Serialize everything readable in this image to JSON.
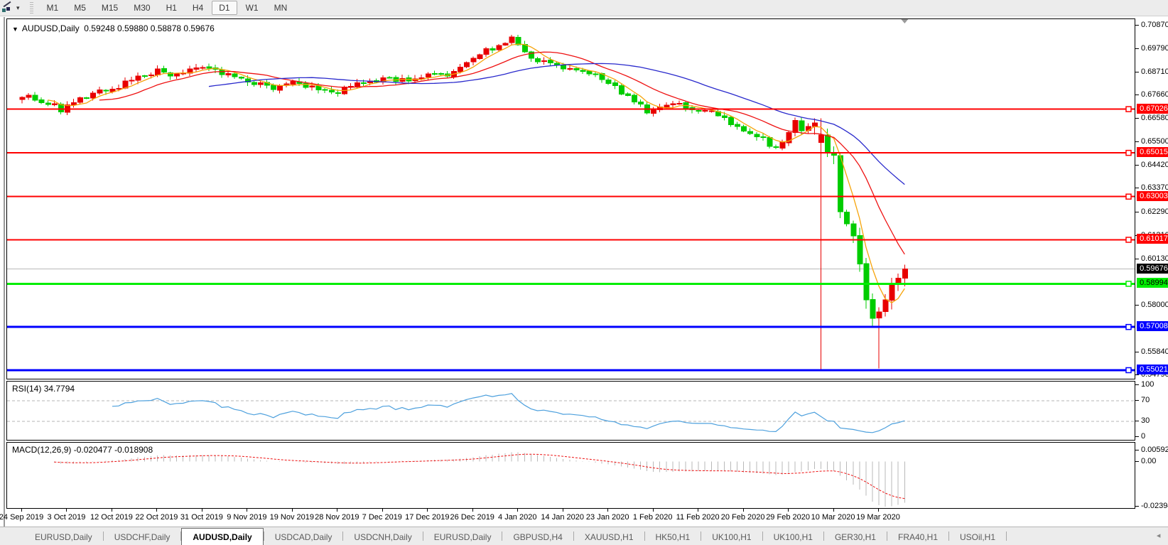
{
  "toolbar": {
    "timeframes": [
      "M1",
      "M5",
      "M15",
      "M30",
      "H1",
      "H4",
      "D1",
      "W1",
      "MN"
    ],
    "active_timeframe": "D1",
    "pointer_tool_icon": "chart-cursor-tool",
    "dropdown_caret": "▾"
  },
  "chart": {
    "title_triangle": "▼",
    "symbol_title": "AUDUSD,Daily",
    "ohlc_text": "0.59248 0.59880 0.58878 0.59676"
  },
  "rsi_panel": {
    "label": "RSI(14)",
    "value": "34.7794",
    "ticks": [
      "100",
      "70",
      "30",
      "0"
    ]
  },
  "macd_panel": {
    "label": "MACD(12,26,9)",
    "values": "-0.020477 -0.018908",
    "ticks": [
      "0.005923",
      "0.00",
      "-0.023944"
    ]
  },
  "chart_data": {
    "type": "candlestick",
    "symbol": "AUDUSD",
    "timeframe": "Daily",
    "current_bar": {
      "open": 0.59248,
      "high": 0.5988,
      "low": 0.58878,
      "close": 0.59676
    },
    "current_price_label": "0.59676",
    "price_range": {
      "top": 0.71163,
      "bottom": 0.54628
    },
    "price_axis_ticks": [
      "0.70870",
      "0.69790",
      "0.68710",
      "0.67660",
      "0.66580",
      "0.65500",
      "0.64420",
      "0.63370",
      "0.62290",
      "0.61210",
      "0.60130",
      "0.58000",
      "0.55840",
      "0.54790"
    ],
    "horizontal_lines": [
      {
        "price": 0.67026,
        "label": "0.67026",
        "color": "#ff0000",
        "text_color": "#ffffff",
        "width": 2
      },
      {
        "price": 0.65015,
        "label": "0.65015",
        "color": "#ff0000",
        "text_color": "#ffffff",
        "width": 2
      },
      {
        "price": 0.63003,
        "label": "0.63003",
        "color": "#ff0000",
        "text_color": "#ffffff",
        "width": 2
      },
      {
        "price": 0.61017,
        "label": "0.61017",
        "color": "#ff0000",
        "text_color": "#ffffff",
        "width": 2
      },
      {
        "price": 0.58994,
        "label": "0.58994",
        "color": "#00ee00",
        "text_color": "#000000",
        "width": 3
      },
      {
        "price": 0.57008,
        "label": "0.57008",
        "color": "#0000ff",
        "text_color": "#ffffff",
        "width": 3
      },
      {
        "price": 0.55021,
        "label": "0.55021",
        "color": "#0000ff",
        "text_color": "#ffffff",
        "width": 3
      }
    ],
    "x_axis_dates": [
      "24 Sep 2019",
      "3 Oct 2019",
      "12 Oct 2019",
      "22 Oct 2019",
      "31 Oct 2019",
      "9 Nov 2019",
      "19 Nov 2019",
      "28 Nov 2019",
      "7 Dec 2019",
      "17 Dec 2019",
      "26 Dec 2019",
      "4 Jan 2020",
      "14 Jan 2020",
      "23 Jan 2020",
      "1 Feb 2020",
      "11 Feb 2020",
      "20 Feb 2020",
      "29 Feb 2020",
      "10 Mar 2020",
      "19 Mar 2020"
    ],
    "bars_per_date_tick": 7,
    "num_bars": 138,
    "bull_color": "#e80000",
    "bear_color": "#00cc00",
    "close_keypoints": [
      [
        0,
        0.677
      ],
      [
        3,
        0.6742
      ],
      [
        6,
        0.67
      ],
      [
        10,
        0.6758
      ],
      [
        14,
        0.68
      ],
      [
        18,
        0.6845
      ],
      [
        21,
        0.6875
      ],
      [
        24,
        0.6855
      ],
      [
        28,
        0.6893
      ],
      [
        31,
        0.6862
      ],
      [
        35,
        0.684
      ],
      [
        39,
        0.6795
      ],
      [
        42,
        0.6818
      ],
      [
        46,
        0.6792
      ],
      [
        49,
        0.678
      ],
      [
        53,
        0.6822
      ],
      [
        56,
        0.684
      ],
      [
        60,
        0.6832
      ],
      [
        63,
        0.6876
      ],
      [
        66,
        0.6858
      ],
      [
        70,
        0.693
      ],
      [
        74,
        0.7005
      ],
      [
        76,
        0.7022
      ],
      [
        79,
        0.6935
      ],
      [
        83,
        0.69
      ],
      [
        87,
        0.6868
      ],
      [
        90,
        0.6843
      ],
      [
        94,
        0.676
      ],
      [
        97,
        0.669
      ],
      [
        101,
        0.6722
      ],
      [
        104,
        0.6712
      ],
      [
        107,
        0.6682
      ],
      [
        111,
        0.6618
      ],
      [
        114,
        0.658
      ],
      [
        117,
        0.6528
      ],
      [
        119,
        0.66
      ],
      [
        120,
        0.664
      ],
      [
        121,
        0.659
      ],
      [
        122,
        0.6615
      ],
      [
        123,
        0.664
      ],
      [
        124,
        0.6583
      ],
      [
        125,
        0.65
      ],
      [
        126,
        0.649
      ],
      [
        127,
        0.623
      ],
      [
        128,
        0.6175
      ],
      [
        129,
        0.612
      ],
      [
        130,
        0.599
      ],
      [
        131,
        0.5825
      ],
      [
        132,
        0.574
      ],
      [
        133,
        0.577
      ],
      [
        134,
        0.5825
      ],
      [
        135,
        0.59
      ],
      [
        136,
        0.5925
      ],
      [
        137,
        0.59676
      ]
    ],
    "bar_overrides": [
      {
        "i": 124,
        "open": 0.655,
        "high": 0.666,
        "low": 0.5505
      },
      {
        "i": 133,
        "low": 0.551
      },
      {
        "i": 137,
        "open": 0.59248,
        "high": 0.5988,
        "low": 0.58878,
        "close": 0.59676
      }
    ],
    "moving_averages": [
      {
        "name": "fast-ma",
        "period": 5,
        "color": "#f6a309"
      },
      {
        "name": "medium-ma",
        "period": 13,
        "color": "#ee1111"
      },
      {
        "name": "slow-ma",
        "period": 30,
        "color": "#2929cc"
      }
    ],
    "indicators": {
      "rsi": {
        "period": 14,
        "value": 34.7794,
        "levels": [
          70,
          30
        ],
        "range": [
          0,
          100
        ],
        "color": "#4da0dd"
      },
      "macd": {
        "fast": 12,
        "slow": 26,
        "signal": 9,
        "macd_value": -0.020477,
        "signal_value": -0.018908,
        "axis_max": 0.005923,
        "axis_zero": 0.0,
        "axis_min": -0.023944,
        "histogram_color": "#b9b9b9",
        "signal_color": "#ee1111"
      }
    }
  },
  "tabs": {
    "items": [
      {
        "label": "EURUSD,Daily",
        "active": false
      },
      {
        "label": "USDCHF,Daily",
        "active": false
      },
      {
        "label": "AUDUSD,Daily",
        "active": true
      },
      {
        "label": "USDCAD,Daily",
        "active": false
      },
      {
        "label": "USDCNH,Daily",
        "active": false
      },
      {
        "label": "EURUSD,Daily",
        "active": false
      },
      {
        "label": "GBPUSD,H4",
        "active": false
      },
      {
        "label": "XAUUSD,H1",
        "active": false
      },
      {
        "label": "HK50,H1",
        "active": false
      },
      {
        "label": "UK100,H1",
        "active": false
      },
      {
        "label": "UK100,H1",
        "active": false
      },
      {
        "label": "GER30,H1",
        "active": false
      },
      {
        "label": "FRA40,H1",
        "active": false
      },
      {
        "label": "USOil,H1",
        "active": false
      }
    ],
    "nav_left": "◂",
    "nav_right": "▸"
  }
}
